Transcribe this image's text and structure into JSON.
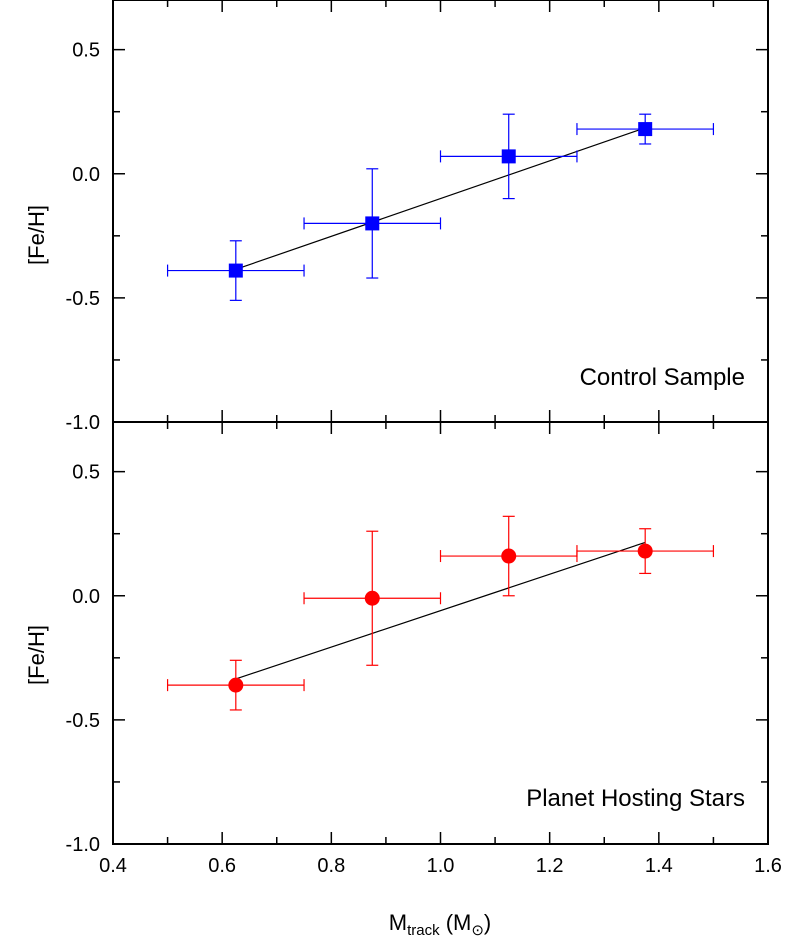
{
  "chart_data": [
    {
      "type": "scatter",
      "panel_label": "Control Sample",
      "ylabel": "[Fe/H]",
      "xlim": [
        0.4,
        1.6
      ],
      "ylim": [
        -1.0,
        0.7
      ],
      "y_ticks": [
        "0.5",
        "0.0",
        "-0.5",
        "-1.0"
      ],
      "y_tick_values": [
        0.5,
        0.0,
        -0.5,
        -1.0
      ],
      "marker": "square",
      "color": "#0000ff",
      "series": [
        {
          "x": [
            0.625,
            0.875,
            1.125,
            1.375
          ],
          "y": [
            -0.39,
            -0.2,
            0.07,
            0.18
          ],
          "x_err": [
            0.125,
            0.125,
            0.125,
            0.125
          ],
          "y_err": [
            0.12,
            0.22,
            0.17,
            0.06
          ]
        }
      ],
      "fit_line": {
        "x": [
          0.625,
          1.375
        ],
        "y": [
          -0.385,
          0.185
        ]
      }
    },
    {
      "type": "scatter",
      "panel_label": "Planet Hosting Stars",
      "ylabel": "[Fe/H]",
      "xlabel": "M",
      "xlabel_sub": "track",
      "xlabel_unit_open": " (M",
      "xlabel_unit_sub": "⊙",
      "xlabel_unit_close": ")",
      "xlim": [
        0.4,
        1.6
      ],
      "ylim": [
        -1.0,
        0.7
      ],
      "x_ticks": [
        "0.4",
        "0.6",
        "0.8",
        "1.0",
        "1.2",
        "1.4",
        "1.6"
      ],
      "x_tick_values": [
        0.4,
        0.6,
        0.8,
        1.0,
        1.2,
        1.4,
        1.6
      ],
      "y_ticks": [
        "0.5",
        "0.0",
        "-0.5",
        "-1.0"
      ],
      "y_tick_values": [
        0.5,
        0.0,
        -0.5,
        -1.0
      ],
      "marker": "circle",
      "color": "#ff0000",
      "series": [
        {
          "x": [
            0.625,
            0.875,
            1.125,
            1.375
          ],
          "y": [
            -0.36,
            -0.01,
            0.16,
            0.18
          ],
          "x_err": [
            0.125,
            0.125,
            0.125,
            0.125
          ],
          "y_err": [
            0.1,
            0.27,
            0.16,
            0.09
          ]
        }
      ],
      "fit_line": {
        "x": [
          0.625,
          1.375
        ],
        "y": [
          -0.335,
          0.215
        ]
      }
    }
  ]
}
